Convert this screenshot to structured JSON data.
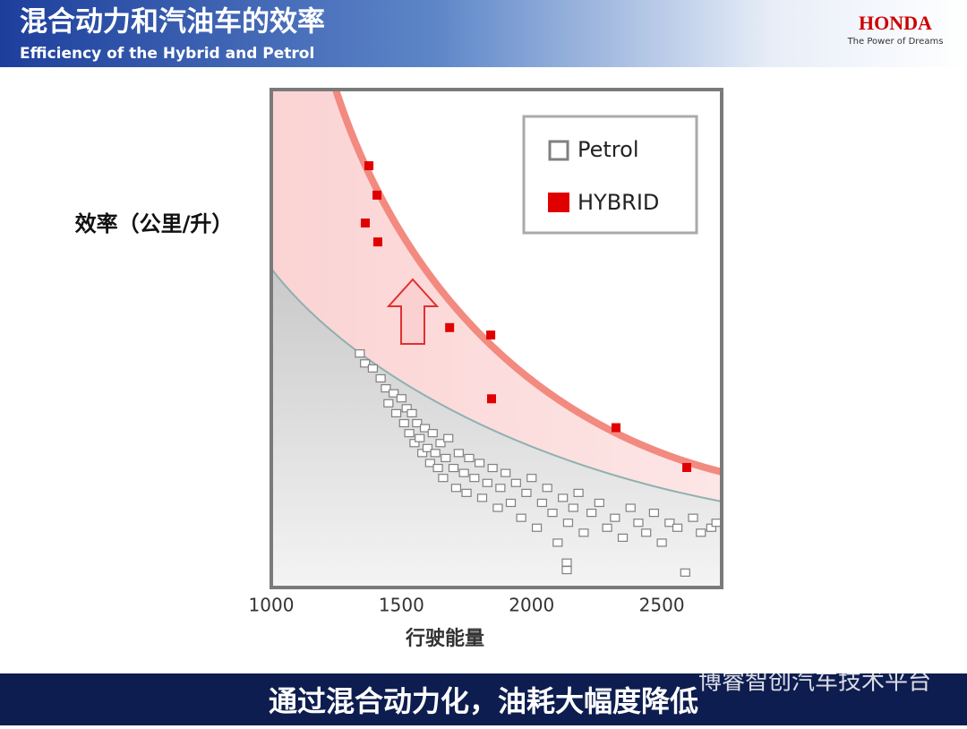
{
  "header": {
    "title": "混合动力和汽油车的效率",
    "subtitle": "Efficiency of the Hybrid  and Petrol",
    "brand": "HONDA",
    "slogan": "The Power of Dreams"
  },
  "chart_data": {
    "type": "scatter",
    "y_label": "效率（公里/升）",
    "x_label": "行驶能量",
    "xlim": [
      1000,
      2730
    ],
    "xticks": [
      1000,
      1500,
      2000,
      2500
    ],
    "ylim": [
      0,
      100
    ],
    "legend": "top-right",
    "series": [
      {
        "name": "Petrol",
        "color": "#808080",
        "x": [
          1340,
          1360,
          1390,
          1420,
          1440,
          1450,
          1470,
          1480,
          1500,
          1510,
          1520,
          1530,
          1540,
          1550,
          1560,
          1570,
          1580,
          1590,
          1600,
          1610,
          1620,
          1630,
          1640,
          1650,
          1660,
          1670,
          1680,
          1700,
          1710,
          1720,
          1740,
          1750,
          1760,
          1780,
          1800,
          1810,
          1830,
          1850,
          1870,
          1880,
          1900,
          1920,
          1940,
          1960,
          1980,
          2000,
          2020,
          2040,
          2060,
          2080,
          2100,
          2120,
          2140,
          2160,
          2180,
          2200,
          2230,
          2260,
          2290,
          2320,
          2350,
          2380,
          2410,
          2440,
          2470,
          2500,
          2530,
          2560,
          2590,
          2620,
          2650,
          2690,
          2710,
          2135,
          2135
        ],
        "values": [
          47,
          45,
          44,
          42,
          40,
          37,
          39,
          35,
          38,
          33,
          36,
          31,
          35,
          29,
          33,
          30,
          27,
          32,
          28,
          25,
          31,
          27,
          24,
          29,
          22,
          26,
          30,
          24,
          20,
          27,
          23,
          19,
          26,
          22,
          25,
          18,
          21,
          24,
          16,
          20,
          23,
          17,
          21,
          14,
          19,
          22,
          12,
          17,
          20,
          15,
          9,
          18,
          13,
          16,
          19,
          11,
          15,
          17,
          12,
          14,
          10,
          16,
          13,
          11,
          15,
          9,
          13,
          12,
          3,
          14,
          11,
          12,
          13,
          5,
          3.5
        ]
      },
      {
        "name": "HYBRID",
        "color": "#e00000",
        "x": [
          1375,
          1406,
          1361,
          1409,
          1685,
          1843,
          1846,
          2324,
          2596
        ],
        "values": [
          84.7,
          78.8,
          73.2,
          69.4,
          52.2,
          50.7,
          37.9,
          32.1,
          24.1
        ]
      }
    ]
  },
  "footer": {
    "caption": "通过混合动力化，油耗大幅度降低",
    "watermark": "博睿智创汽车技术平台"
  }
}
